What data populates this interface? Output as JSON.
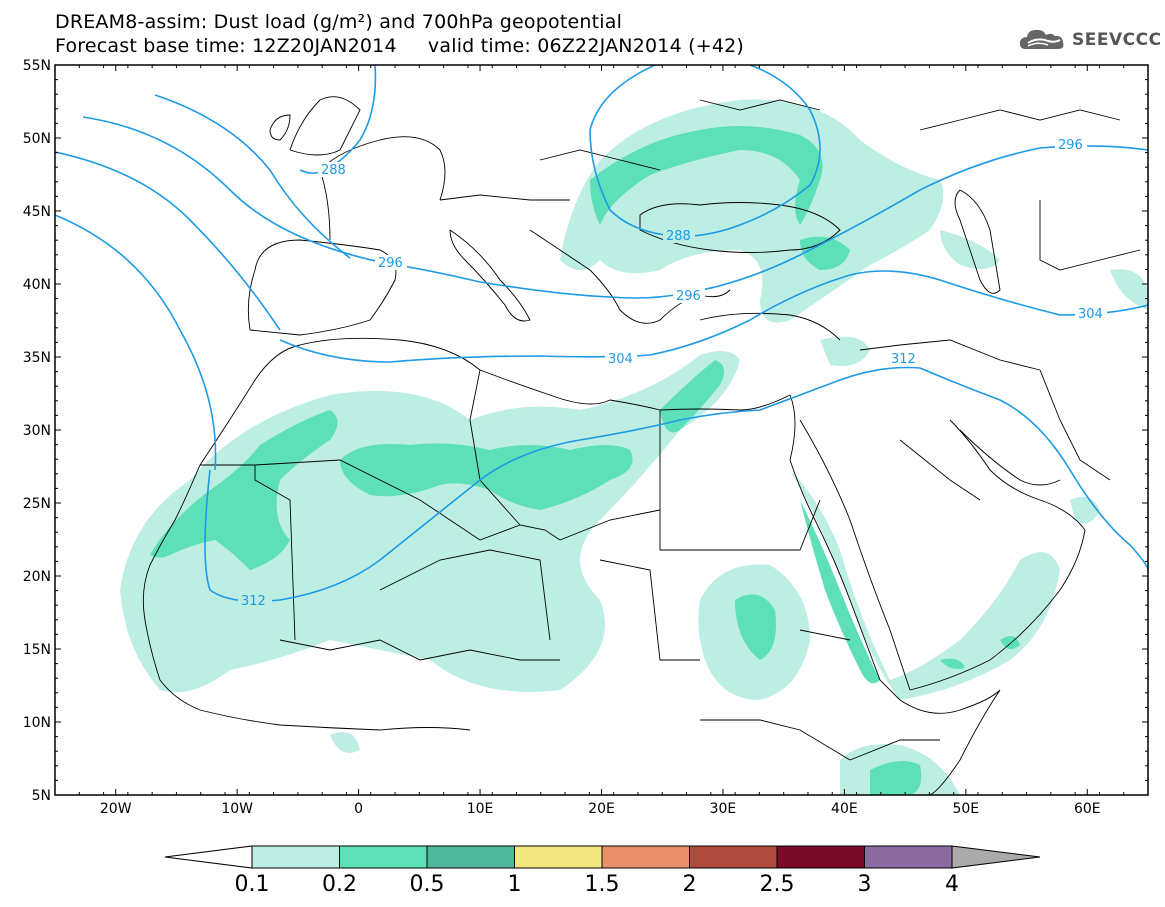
{
  "header": {
    "title_line1": "DREAM8-assim: Dust load (g/m²) and 700hPa geopotential",
    "title_line2": "Forecast base time: 12Z20JAN2014     valid time: 06Z22JAN2014 (+42)"
  },
  "logo": {
    "text": "SEEVCCC",
    "icon": "cloud-icon"
  },
  "axes": {
    "lat_labels": [
      "55N",
      "50N",
      "45N",
      "40N",
      "35N",
      "30N",
      "25N",
      "20N",
      "15N",
      "10N",
      "5N"
    ],
    "lon_labels": [
      "20W",
      "10W",
      "0",
      "10E",
      "20E",
      "30E",
      "40E",
      "50E",
      "60E"
    ]
  },
  "contours": {
    "labels": [
      "288",
      "288",
      "296",
      "296",
      "304",
      "304",
      "312",
      "312",
      "296"
    ]
  },
  "colorbar": {
    "ticks": [
      "0.1",
      "0.2",
      "0.5",
      "1",
      "1.5",
      "2",
      "2.5",
      "3",
      "4"
    ],
    "colors": [
      "#ffffff",
      "#bdeee4",
      "#5ddfb8",
      "#4eb89a",
      "#f2e680",
      "#e8906a",
      "#b04a3e",
      "#7a0a28",
      "#8a6aa0",
      "#aaaaaa"
    ]
  }
}
